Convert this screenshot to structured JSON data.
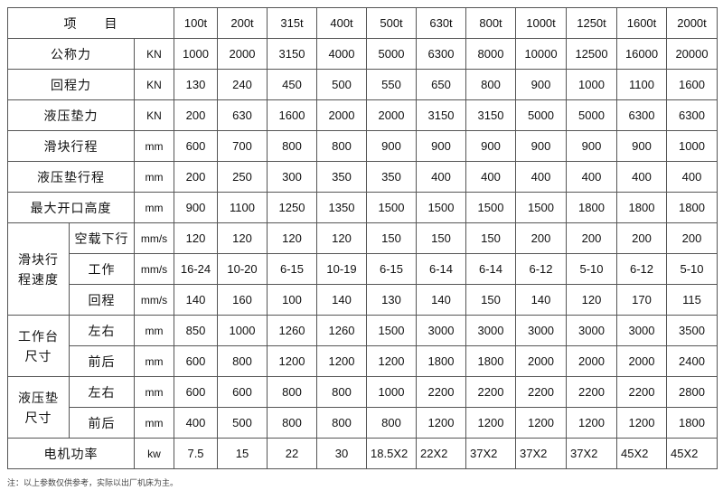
{
  "header": {
    "label": "项　　目",
    "models": [
      "100t",
      "200t",
      "315t",
      "400t",
      "500t",
      "630t",
      "800t",
      "1000t",
      "1250t",
      "1600t",
      "2000t"
    ]
  },
  "simple_rows": [
    {
      "label": "公称力",
      "unit": "KN",
      "values": [
        "1000",
        "2000",
        "3150",
        "4000",
        "5000",
        "6300",
        "8000",
        "10000",
        "12500",
        "16000",
        "20000"
      ]
    },
    {
      "label": "回程力",
      "unit": "KN",
      "values": [
        "130",
        "240",
        "450",
        "500",
        "550",
        "650",
        "800",
        "900",
        "1000",
        "1100",
        "1600"
      ]
    },
    {
      "label": "液压垫力",
      "unit": "KN",
      "values": [
        "200",
        "630",
        "1600",
        "2000",
        "2000",
        "3150",
        "3150",
        "5000",
        "5000",
        "6300",
        "6300"
      ]
    },
    {
      "label": "滑块行程",
      "unit": "mm",
      "values": [
        "600",
        "700",
        "800",
        "800",
        "900",
        "900",
        "900",
        "900",
        "900",
        "900",
        "1000"
      ]
    },
    {
      "label": "液压垫行程",
      "unit": "mm",
      "values": [
        "200",
        "250",
        "300",
        "350",
        "350",
        "400",
        "400",
        "400",
        "400",
        "400",
        "400"
      ]
    },
    {
      "label": "最大开口高度",
      "unit": "mm",
      "values": [
        "900",
        "1100",
        "1250",
        "1350",
        "1500",
        "1500",
        "1500",
        "1500",
        "1800",
        "1800",
        "1800"
      ]
    }
  ],
  "groups": [
    {
      "label": "滑块行程速度",
      "rows": [
        {
          "label": "空载下行",
          "unit": "mm/s",
          "values": [
            "120",
            "120",
            "120",
            "120",
            "150",
            "150",
            "150",
            "200",
            "200",
            "200",
            "200"
          ]
        },
        {
          "label": "工作",
          "unit": "mm/s",
          "values": [
            "16-24",
            "10-20",
            "6-15",
            "10-19",
            "6-15",
            "6-14",
            "6-14",
            "6-12",
            "5-10",
            "6-12",
            "5-10"
          ]
        },
        {
          "label": "回程",
          "unit": "mm/s",
          "values": [
            "140",
            "160",
            "100",
            "140",
            "130",
            "140",
            "150",
            "140",
            "120",
            "170",
            "115"
          ]
        }
      ]
    },
    {
      "label": "工作台尺寸",
      "rows": [
        {
          "label": "左右",
          "unit": "mm",
          "values": [
            "850",
            "1000",
            "1260",
            "1260",
            "1500",
            "3000",
            "3000",
            "3000",
            "3000",
            "3000",
            "3500"
          ]
        },
        {
          "label": "前后",
          "unit": "mm",
          "values": [
            "600",
            "800",
            "1200",
            "1200",
            "1200",
            "1800",
            "1800",
            "2000",
            "2000",
            "2000",
            "2400"
          ]
        }
      ]
    },
    {
      "label": "液压垫尺寸",
      "rows": [
        {
          "label": "左右",
          "unit": "mm",
          "values": [
            "600",
            "600",
            "800",
            "800",
            "1000",
            "2200",
            "2200",
            "2200",
            "2200",
            "2200",
            "2800"
          ]
        },
        {
          "label": "前后",
          "unit": "mm",
          "values": [
            "400",
            "500",
            "800",
            "800",
            "800",
            "1200",
            "1200",
            "1200",
            "1200",
            "1200",
            "1800"
          ]
        }
      ]
    }
  ],
  "motor": {
    "label": "电机功率",
    "unit": "kw",
    "values": [
      "7.5",
      "15",
      "22",
      "30",
      "18.5X2",
      "22X2",
      "37X2",
      "37X2",
      "37X2",
      "45X2",
      "45X2"
    ]
  },
  "note": "注：以上参数仅供参考，实际以出厂机床为主。"
}
